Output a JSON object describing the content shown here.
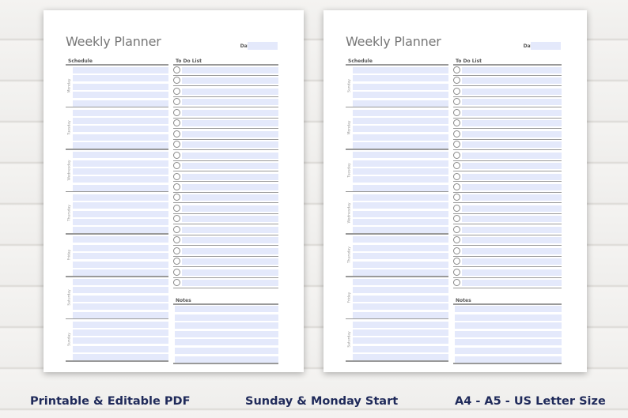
{
  "pages": [
    {
      "title": "Weekly Planner",
      "date_label": "Date:",
      "schedule_label": "Schedule",
      "todo_label": "To Do List",
      "notes_label": "Notes",
      "days": [
        "Monday",
        "Tuesday",
        "Wednesday",
        "Thursday",
        "Friday",
        "Saturday",
        "Sunday"
      ],
      "todo_count": 21,
      "has_notes": true
    },
    {
      "title": "Weekly Planner",
      "date_label": "Date:",
      "schedule_label": "Schedule",
      "todo_label": "To Do List",
      "notes_label": "Notes",
      "days": [
        "Sunday",
        "Monday",
        "Tuesday",
        "Wednesday",
        "Thursday",
        "Friday",
        "Saturday"
      ],
      "todo_count": 21,
      "has_notes": true
    }
  ],
  "captions": [
    "Printable & Editable PDF",
    "Sunday & Monday Start",
    "A4 - A5 - US Letter Size"
  ],
  "colors": {
    "row_fill": "#e4e9fb",
    "caption": "#1f2a5a"
  }
}
